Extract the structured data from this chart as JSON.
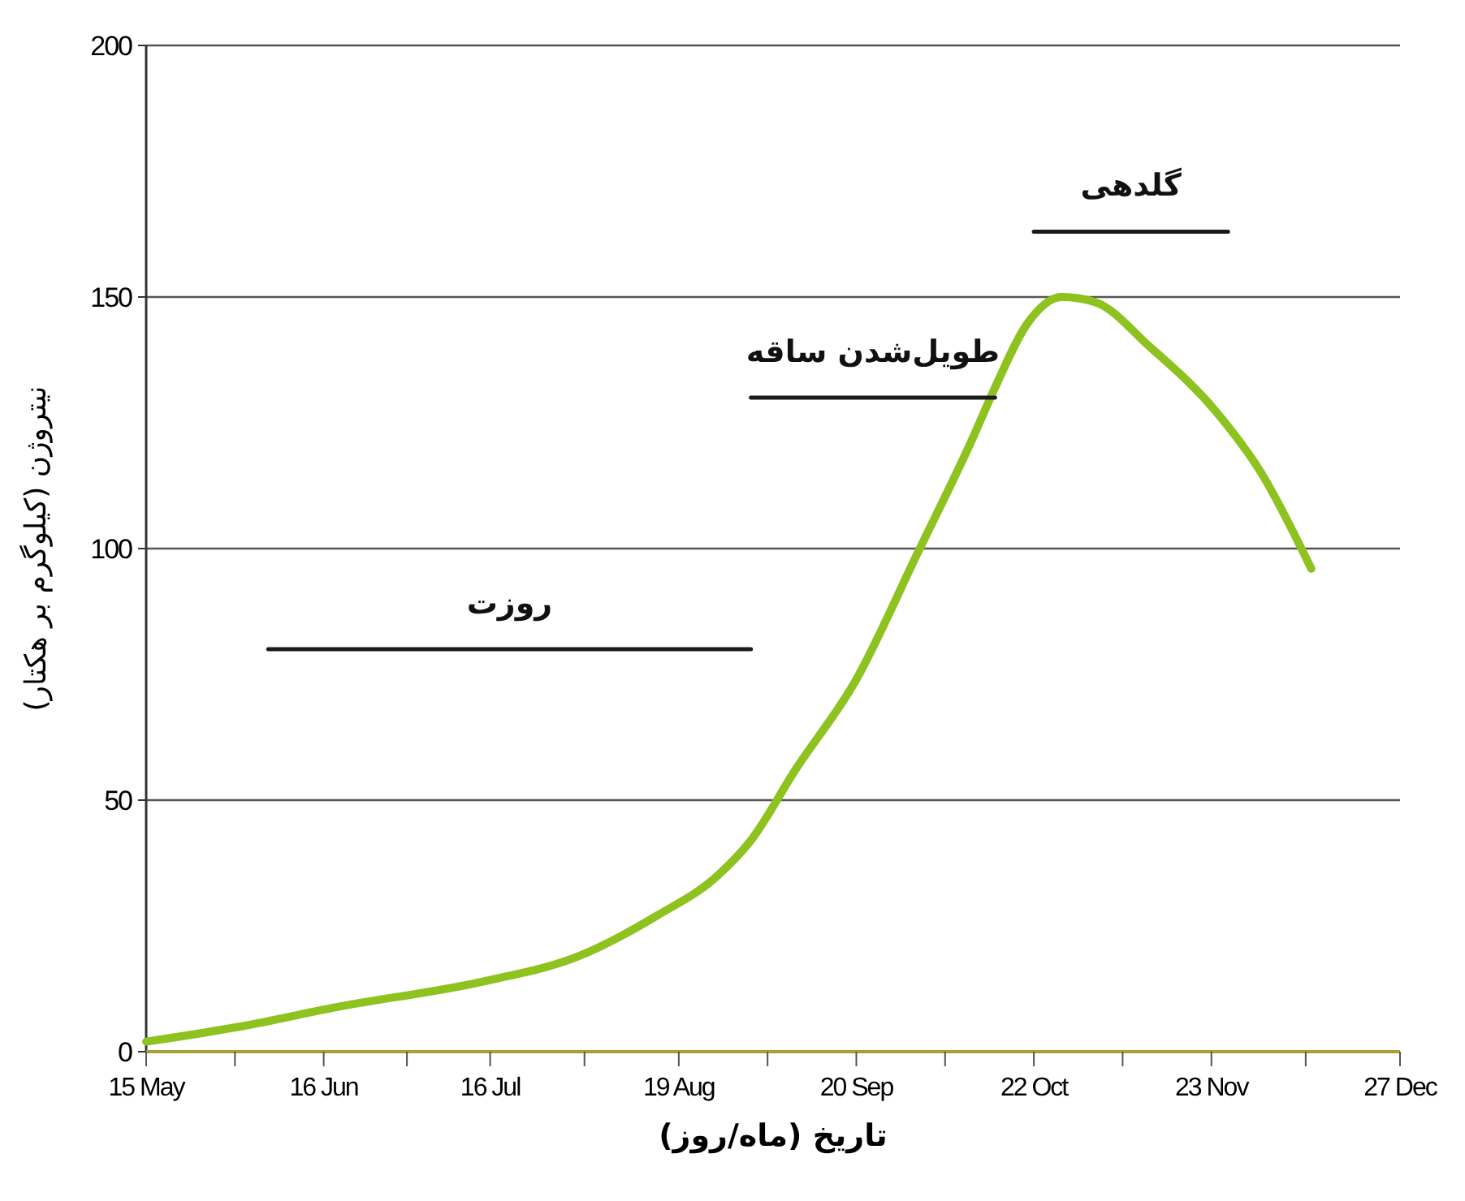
{
  "chart_data": {
    "type": "line",
    "xlabel": "تاریخ (ماه/روز)",
    "ylabel": "نیتروژن (کیلوگرم بر هکتار)",
    "xlim": [
      "--05-15",
      "--12-27"
    ],
    "ylim": [
      0,
      200
    ],
    "yticks": [
      0,
      50,
      100,
      150,
      200
    ],
    "grid": "y",
    "xticks": [
      {
        "value": "--05-15",
        "label": "15 May"
      },
      {
        "value": "--05-31",
        "label": null
      },
      {
        "value": "--06-16",
        "label": "16 Jun"
      },
      {
        "value": "--07-01",
        "label": null
      },
      {
        "value": "--07-16",
        "label": "16 Jul"
      },
      {
        "value": "--08-02",
        "label": null
      },
      {
        "value": "--08-19",
        "label": "19 Aug"
      },
      {
        "value": "--09-04",
        "label": null
      },
      {
        "value": "--09-20",
        "label": "20 Sep"
      },
      {
        "value": "--10-06",
        "label": null
      },
      {
        "value": "--10-22",
        "label": "22 Oct"
      },
      {
        "value": "--11-07",
        "label": null
      },
      {
        "value": "--11-23",
        "label": "23 Nov"
      },
      {
        "value": "--12-10",
        "label": null
      },
      {
        "value": "--12-27",
        "label": "27 Dec"
      }
    ],
    "series": [
      {
        "color": "#8dc21f",
        "x": [
          "--05-15",
          "--06-01",
          "--06-19",
          "--07-15",
          "--08-01",
          "--08-15",
          "--08-26",
          "--09-01",
          "--09-09",
          "--09-20",
          "--10-01",
          "--10-11",
          "--10-15",
          "--10-21",
          "--10-27",
          "--11-02",
          "--11-12",
          "--11-24",
          "--12-02",
          "--12-11"
        ],
        "values": [
          2,
          5,
          9,
          14,
          19,
          27,
          35,
          42,
          56,
          74,
          99,
          122,
          132,
          145,
          150,
          149,
          140,
          127,
          115,
          96
        ]
      },
      {
        "name": "روزت",
        "color": "#1a1a1a",
        "x": [
          "--06-06",
          "--09-01"
        ],
        "values": [
          80,
          80
        ]
      },
      {
        "name": "طویل‌شدن ساقه",
        "color": "#1a1a1a",
        "x": [
          "--09-01",
          "--10-15"
        ],
        "values": [
          130,
          130
        ]
      },
      {
        "name": "گلدهی",
        "color": "#1a1a1a",
        "x": [
          "--10-22",
          "--11-26"
        ],
        "values": [
          163,
          163
        ]
      }
    ]
  }
}
